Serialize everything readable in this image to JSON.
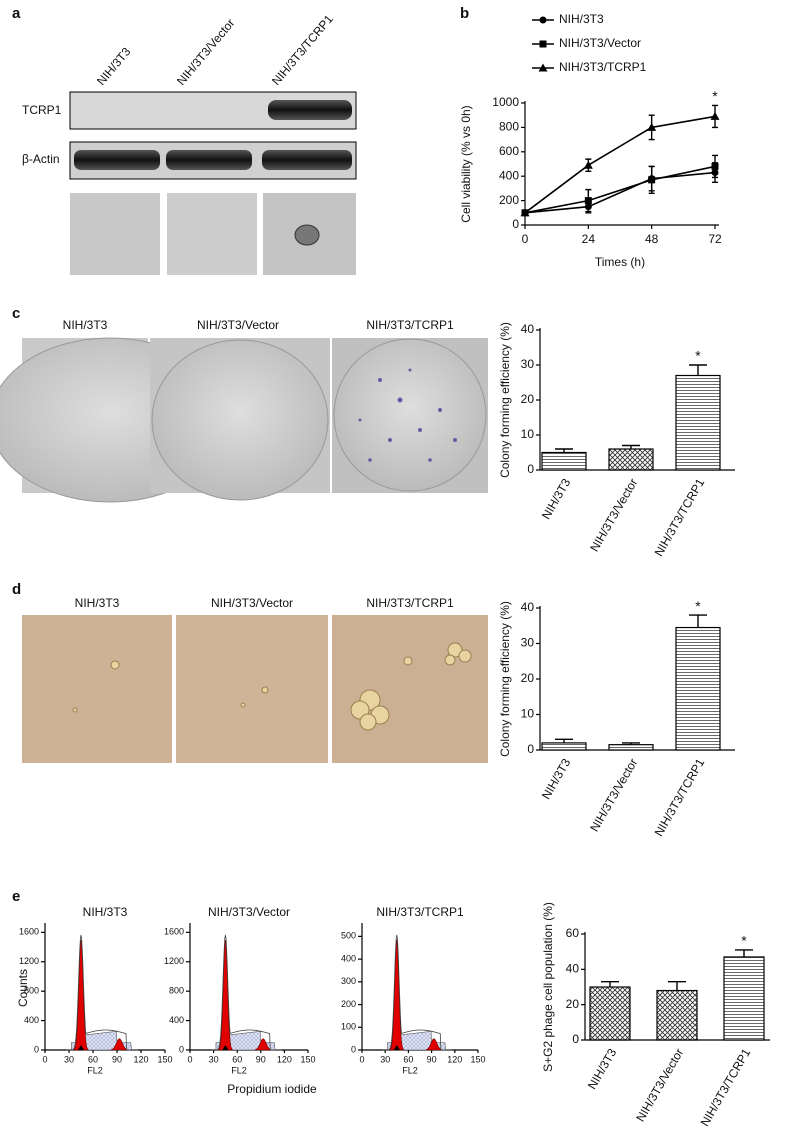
{
  "figure": {
    "panel_labels": [
      "a",
      "b",
      "c",
      "d",
      "e"
    ],
    "blot": {
      "columns": [
        "NIH/3T3",
        "NIH/3T3/Vector",
        "NIH/3T3/TCRP1"
      ],
      "rows": [
        "TCRP1",
        "β-Actin"
      ]
    },
    "c_images": [
      "NIH/3T3",
      "NIH/3T3/Vector",
      "NIH/3T3/TCRP1"
    ],
    "d_images": [
      "NIH/3T3",
      "NIH/3T3/Vector",
      "NIH/3T3/TCRP1"
    ],
    "counts_label": "Counts",
    "flow_axis_label": "Propidium iodide"
  },
  "chart_data": [
    {
      "type": "line",
      "x": [
        0,
        24,
        48,
        72
      ],
      "xlim": [
        0,
        72
      ],
      "xticks": [
        0,
        24,
        48,
        72
      ],
      "ylim": [
        0,
        1000
      ],
      "yticks": [
        0,
        200,
        400,
        600,
        800,
        1000
      ],
      "xlabel": "Times (h)",
      "ylabel": "Cell viability (% vs 0h)",
      "annotation": "*",
      "series": [
        {
          "name": "NIH/3T3",
          "color": "#000000",
          "marker": "circle",
          "values": [
            100,
            150,
            380,
            430
          ],
          "errors": [
            10,
            50,
            100,
            80
          ]
        },
        {
          "name": "NIH/3T3/Vector",
          "color": "#000000",
          "marker": "square",
          "values": [
            100,
            200,
            370,
            480
          ],
          "errors": [
            10,
            90,
            110,
            90
          ]
        },
        {
          "name": "NIH/3T3/TCRP1",
          "color": "#000000",
          "marker": "triangle",
          "values": [
            100,
            490,
            800,
            890
          ],
          "errors": [
            10,
            50,
            100,
            90
          ]
        }
      ]
    },
    {
      "type": "bar",
      "categories": [
        "NIH/3T3",
        "NIH/3T3/Vector",
        "NIH/3T3/TCRP1"
      ],
      "values": [
        5,
        6,
        27
      ],
      "errors": [
        1,
        1,
        3
      ],
      "patterns": [
        "lines",
        "check",
        "lines"
      ],
      "ylim": [
        0,
        40
      ],
      "yticks": [
        0,
        10,
        20,
        30,
        40
      ],
      "ylabel": "Colony forming efficiency (%)",
      "annotation": "*"
    },
    {
      "type": "bar",
      "categories": [
        "NIH/3T3",
        "NIH/3T3/Vector",
        "NIH/3T3/TCRP1"
      ],
      "values": [
        2,
        1.5,
        34.5
      ],
      "errors": [
        1,
        0.5,
        3.5
      ],
      "patterns": [
        "lines",
        "lines",
        "lines"
      ],
      "ylim": [
        0,
        40
      ],
      "yticks": [
        0,
        10,
        20,
        30,
        40
      ],
      "ylabel": "Colony forming efficiency (%)",
      "annotation": "*"
    },
    {
      "type": "flow",
      "title": "NIH/3T3",
      "xlabel": "FL2",
      "xlim": [
        0,
        150
      ],
      "xticks": [
        0,
        30,
        60,
        90,
        120,
        150
      ],
      "ylim": [
        0,
        1700
      ],
      "yticks": [
        0,
        400,
        800,
        1200,
        1600
      ]
    },
    {
      "type": "flow",
      "title": "NIH/3T3/Vector",
      "xlabel": "FL2",
      "xlim": [
        0,
        150
      ],
      "xticks": [
        0,
        30,
        60,
        90,
        120,
        150
      ],
      "ylim": [
        0,
        1700
      ],
      "yticks": [
        0,
        400,
        800,
        1200,
        1600
      ]
    },
    {
      "type": "flow",
      "title": "NIH/3T3/TCRP1",
      "xlabel": "FL2",
      "xlim": [
        0,
        150
      ],
      "xticks": [
        0,
        30,
        60,
        90,
        120,
        150
      ],
      "ylim": [
        0,
        550
      ],
      "yticks": [
        0,
        100,
        200,
        300,
        400,
        500
      ]
    },
    {
      "type": "bar",
      "categories": [
        "NIH/3T3",
        "NIH/3T3/Vector",
        "NIH/3T3/TCRP1"
      ],
      "values": [
        30,
        28,
        47
      ],
      "errors": [
        3,
        5,
        4
      ],
      "patterns": [
        "check",
        "check",
        "lines"
      ],
      "ylim": [
        0,
        60
      ],
      "yticks": [
        0,
        20,
        40,
        60
      ],
      "ylabel": "S+G2 phage cell population (%)",
      "annotation": "*"
    }
  ]
}
